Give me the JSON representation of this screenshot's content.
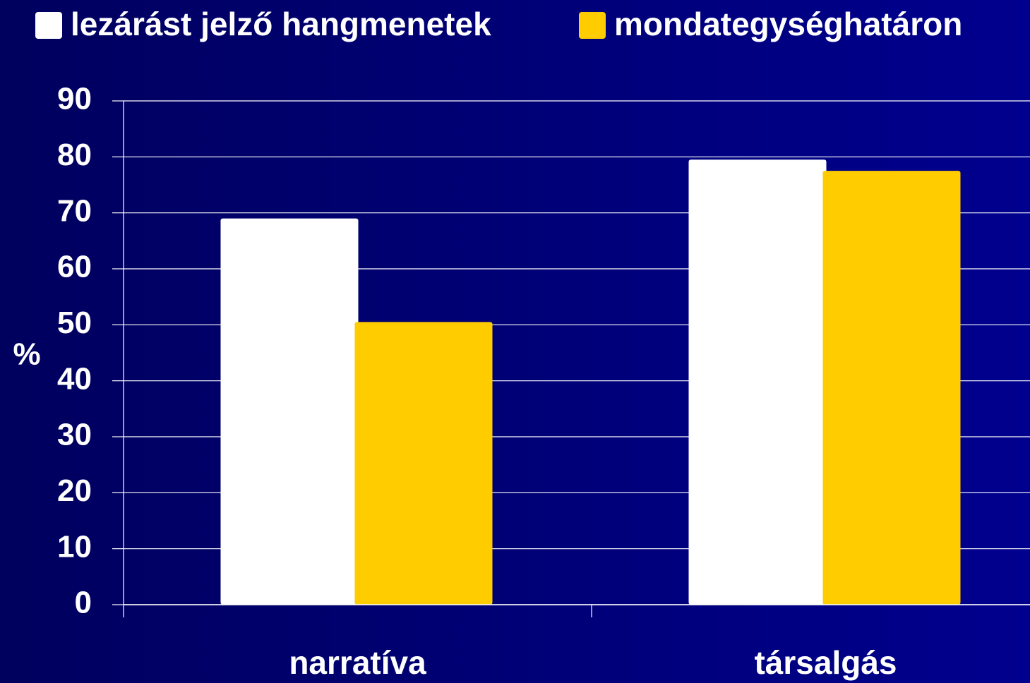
{
  "chart_data": {
    "type": "bar",
    "ylabel": "%",
    "categories": [
      "narratíva",
      "társalgás"
    ],
    "series": [
      {
        "name": "lezárást jelző hangmenetek",
        "color": "#ffffff",
        "values": [
          69,
          79.5
        ]
      },
      {
        "name": "mondategységhatáron",
        "color": "#ffcc00",
        "values": [
          50.5,
          77.5
        ]
      }
    ],
    "ylim": [
      0,
      90
    ],
    "yticks": [
      0,
      10,
      20,
      30,
      40,
      50,
      60,
      70,
      80,
      90
    ],
    "grid": true,
    "legend": "top"
  }
}
